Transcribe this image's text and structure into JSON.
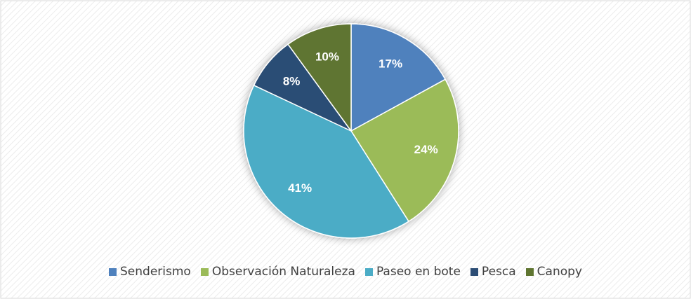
{
  "chart_data": {
    "type": "pie",
    "categories": [
      "Senderismo",
      "Observación Naturaleza",
      "Paseo en bote",
      "Pesca",
      "Canopy"
    ],
    "values": [
      17,
      24,
      41,
      8,
      10
    ],
    "value_labels": [
      "17%",
      "24%",
      "41%",
      "8%",
      "10%"
    ],
    "colors": [
      "#4f81bd",
      "#9bbb59",
      "#4bacc6",
      "#2c4d75",
      "#5f7530"
    ],
    "legend": "bottom"
  }
}
